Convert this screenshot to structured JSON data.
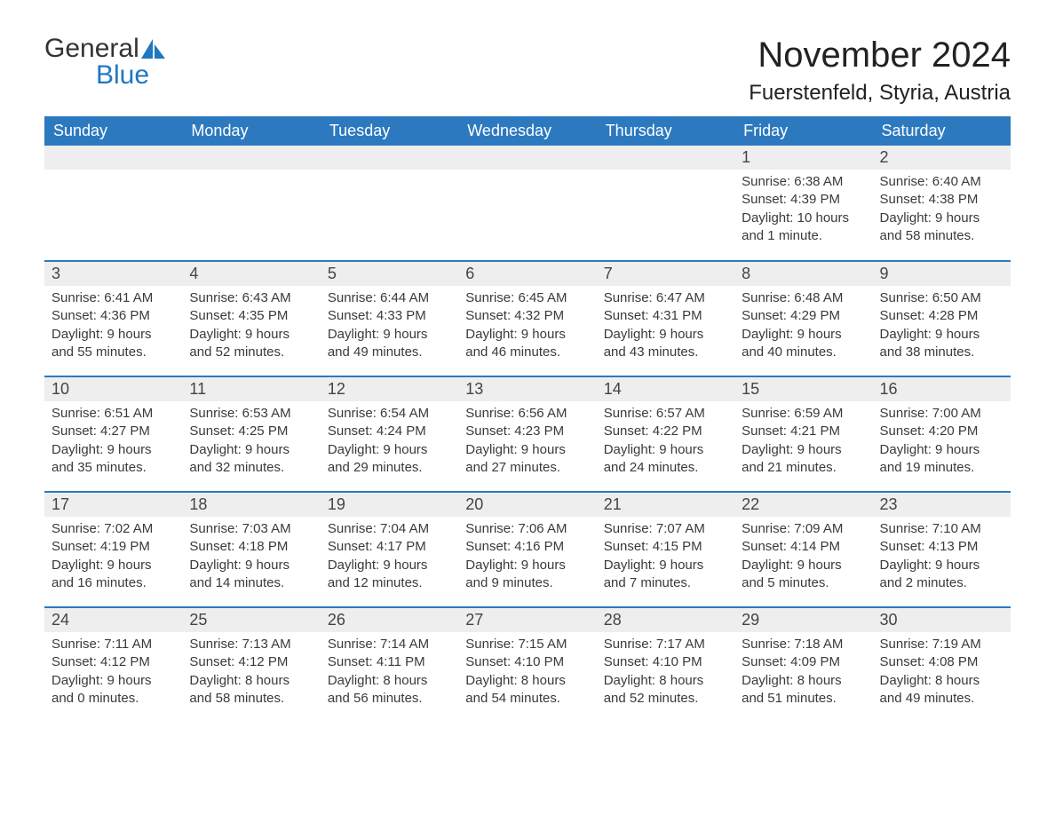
{
  "logo": {
    "word1": "General",
    "word2": "Blue"
  },
  "title": "November 2024",
  "location": "Fuerstenfeld, Styria, Austria",
  "colors": {
    "header_bg": "#2d79bf",
    "header_text": "#ffffff",
    "daynum_bg": "#eeeeee",
    "text": "#3a3a3a",
    "logo_blue": "#1f77c0",
    "row_divider": "#2d79bf"
  },
  "day_labels": [
    "Sunday",
    "Monday",
    "Tuesday",
    "Wednesday",
    "Thursday",
    "Friday",
    "Saturday"
  ],
  "weeks": [
    [
      null,
      null,
      null,
      null,
      null,
      {
        "n": "1",
        "sunrise": "Sunrise: 6:38 AM",
        "sunset": "Sunset: 4:39 PM",
        "daylight": "Daylight: 10 hours and 1 minute."
      },
      {
        "n": "2",
        "sunrise": "Sunrise: 6:40 AM",
        "sunset": "Sunset: 4:38 PM",
        "daylight": "Daylight: 9 hours and 58 minutes."
      }
    ],
    [
      {
        "n": "3",
        "sunrise": "Sunrise: 6:41 AM",
        "sunset": "Sunset: 4:36 PM",
        "daylight": "Daylight: 9 hours and 55 minutes."
      },
      {
        "n": "4",
        "sunrise": "Sunrise: 6:43 AM",
        "sunset": "Sunset: 4:35 PM",
        "daylight": "Daylight: 9 hours and 52 minutes."
      },
      {
        "n": "5",
        "sunrise": "Sunrise: 6:44 AM",
        "sunset": "Sunset: 4:33 PM",
        "daylight": "Daylight: 9 hours and 49 minutes."
      },
      {
        "n": "6",
        "sunrise": "Sunrise: 6:45 AM",
        "sunset": "Sunset: 4:32 PM",
        "daylight": "Daylight: 9 hours and 46 minutes."
      },
      {
        "n": "7",
        "sunrise": "Sunrise: 6:47 AM",
        "sunset": "Sunset: 4:31 PM",
        "daylight": "Daylight: 9 hours and 43 minutes."
      },
      {
        "n": "8",
        "sunrise": "Sunrise: 6:48 AM",
        "sunset": "Sunset: 4:29 PM",
        "daylight": "Daylight: 9 hours and 40 minutes."
      },
      {
        "n": "9",
        "sunrise": "Sunrise: 6:50 AM",
        "sunset": "Sunset: 4:28 PM",
        "daylight": "Daylight: 9 hours and 38 minutes."
      }
    ],
    [
      {
        "n": "10",
        "sunrise": "Sunrise: 6:51 AM",
        "sunset": "Sunset: 4:27 PM",
        "daylight": "Daylight: 9 hours and 35 minutes."
      },
      {
        "n": "11",
        "sunrise": "Sunrise: 6:53 AM",
        "sunset": "Sunset: 4:25 PM",
        "daylight": "Daylight: 9 hours and 32 minutes."
      },
      {
        "n": "12",
        "sunrise": "Sunrise: 6:54 AM",
        "sunset": "Sunset: 4:24 PM",
        "daylight": "Daylight: 9 hours and 29 minutes."
      },
      {
        "n": "13",
        "sunrise": "Sunrise: 6:56 AM",
        "sunset": "Sunset: 4:23 PM",
        "daylight": "Daylight: 9 hours and 27 minutes."
      },
      {
        "n": "14",
        "sunrise": "Sunrise: 6:57 AM",
        "sunset": "Sunset: 4:22 PM",
        "daylight": "Daylight: 9 hours and 24 minutes."
      },
      {
        "n": "15",
        "sunrise": "Sunrise: 6:59 AM",
        "sunset": "Sunset: 4:21 PM",
        "daylight": "Daylight: 9 hours and 21 minutes."
      },
      {
        "n": "16",
        "sunrise": "Sunrise: 7:00 AM",
        "sunset": "Sunset: 4:20 PM",
        "daylight": "Daylight: 9 hours and 19 minutes."
      }
    ],
    [
      {
        "n": "17",
        "sunrise": "Sunrise: 7:02 AM",
        "sunset": "Sunset: 4:19 PM",
        "daylight": "Daylight: 9 hours and 16 minutes."
      },
      {
        "n": "18",
        "sunrise": "Sunrise: 7:03 AM",
        "sunset": "Sunset: 4:18 PM",
        "daylight": "Daylight: 9 hours and 14 minutes."
      },
      {
        "n": "19",
        "sunrise": "Sunrise: 7:04 AM",
        "sunset": "Sunset: 4:17 PM",
        "daylight": "Daylight: 9 hours and 12 minutes."
      },
      {
        "n": "20",
        "sunrise": "Sunrise: 7:06 AM",
        "sunset": "Sunset: 4:16 PM",
        "daylight": "Daylight: 9 hours and 9 minutes."
      },
      {
        "n": "21",
        "sunrise": "Sunrise: 7:07 AM",
        "sunset": "Sunset: 4:15 PM",
        "daylight": "Daylight: 9 hours and 7 minutes."
      },
      {
        "n": "22",
        "sunrise": "Sunrise: 7:09 AM",
        "sunset": "Sunset: 4:14 PM",
        "daylight": "Daylight: 9 hours and 5 minutes."
      },
      {
        "n": "23",
        "sunrise": "Sunrise: 7:10 AM",
        "sunset": "Sunset: 4:13 PM",
        "daylight": "Daylight: 9 hours and 2 minutes."
      }
    ],
    [
      {
        "n": "24",
        "sunrise": "Sunrise: 7:11 AM",
        "sunset": "Sunset: 4:12 PM",
        "daylight": "Daylight: 9 hours and 0 minutes."
      },
      {
        "n": "25",
        "sunrise": "Sunrise: 7:13 AM",
        "sunset": "Sunset: 4:12 PM",
        "daylight": "Daylight: 8 hours and 58 minutes."
      },
      {
        "n": "26",
        "sunrise": "Sunrise: 7:14 AM",
        "sunset": "Sunset: 4:11 PM",
        "daylight": "Daylight: 8 hours and 56 minutes."
      },
      {
        "n": "27",
        "sunrise": "Sunrise: 7:15 AM",
        "sunset": "Sunset: 4:10 PM",
        "daylight": "Daylight: 8 hours and 54 minutes."
      },
      {
        "n": "28",
        "sunrise": "Sunrise: 7:17 AM",
        "sunset": "Sunset: 4:10 PM",
        "daylight": "Daylight: 8 hours and 52 minutes."
      },
      {
        "n": "29",
        "sunrise": "Sunrise: 7:18 AM",
        "sunset": "Sunset: 4:09 PM",
        "daylight": "Daylight: 8 hours and 51 minutes."
      },
      {
        "n": "30",
        "sunrise": "Sunrise: 7:19 AM",
        "sunset": "Sunset: 4:08 PM",
        "daylight": "Daylight: 8 hours and 49 minutes."
      }
    ]
  ]
}
